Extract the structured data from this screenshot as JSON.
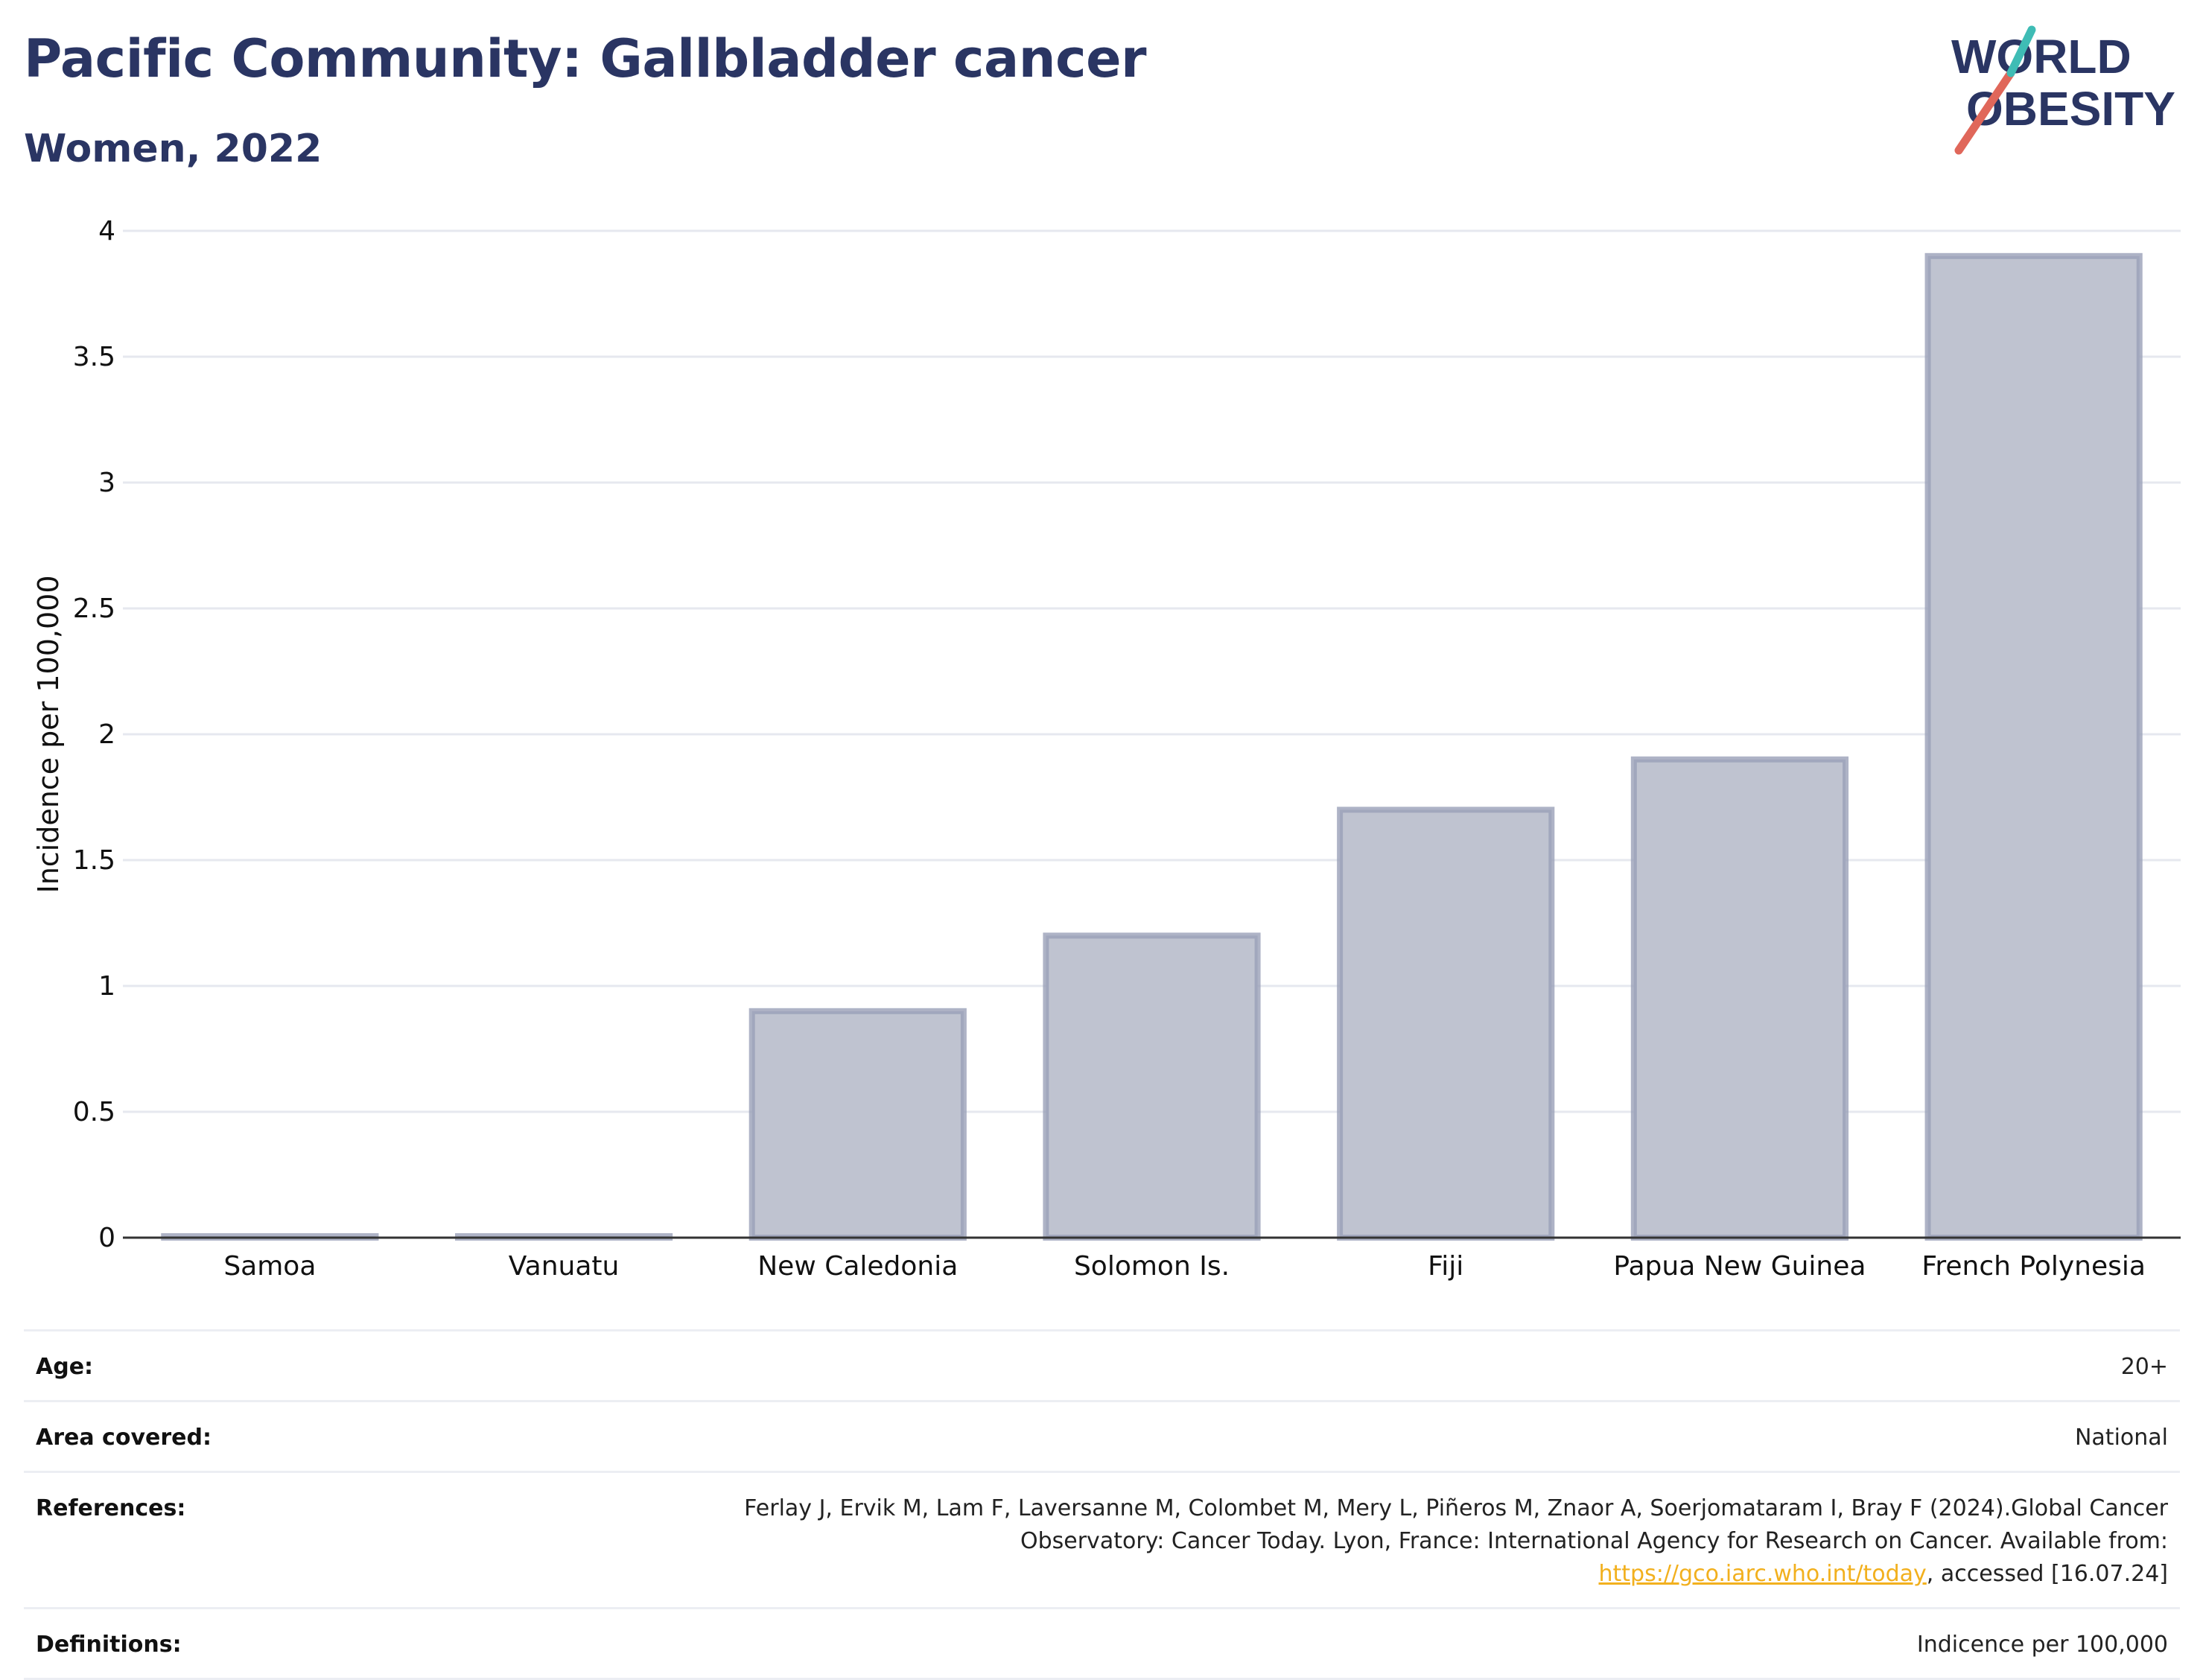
{
  "title": "Pacific Community: Gallbladder cancer",
  "subtitle": "Women, 2022",
  "logo": {
    "line1": "WORLD",
    "line2": "OBESITY",
    "text_color": "#2a3563",
    "slash_colors": [
      "#e0675a",
      "#3fbcb5"
    ]
  },
  "colors": {
    "bar_fill": "#bfc3d0",
    "bar_stroke": "#9aa0b8",
    "grid": "#e6e8ef",
    "axis": "#333333",
    "title": "#2a3563",
    "link": "#f2b01e"
  },
  "chart_data": {
    "type": "bar",
    "categories": [
      "Samoa",
      "Vanuatu",
      "New Caledonia",
      "Solomon Is.",
      "Fiji",
      "Papua New Guinea",
      "French Polynesia"
    ],
    "values": [
      0,
      0,
      0.9,
      1.2,
      1.7,
      1.9,
      3.9
    ],
    "ylabel": "Incidence per 100,000",
    "xlabel": "",
    "ylim": [
      0,
      4
    ],
    "yticks": [
      0,
      0.5,
      1,
      1.5,
      2,
      2.5,
      3,
      3.5,
      4
    ],
    "ytick_labels": [
      "0",
      "0.5",
      "1",
      "1.5",
      "2",
      "2.5",
      "3",
      "3.5",
      "4"
    ],
    "grid": true
  },
  "meta": {
    "age_label": "Age:",
    "age_value": "20+",
    "area_label": "Area covered:",
    "area_value": "National",
    "references_label": "References:",
    "references_text_1": "Ferlay J, Ervik M, Lam F, Laversanne M, Colombet M, Mery L, Piñeros M, Znaor A, Soerjomataram I, Bray F (2024).Global Cancer Observatory: Cancer Today. Lyon, France: International Agency for Research on Cancer. Available from: ",
    "references_link": "https://gco.iarc.who.int/today",
    "references_text_2": ", accessed [16.07.24]",
    "definitions_label": "Definitions:",
    "definitions_value": "Indicence per 100,000"
  }
}
